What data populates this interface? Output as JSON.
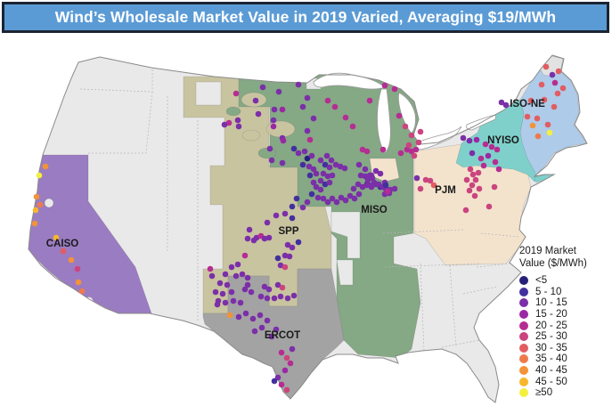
{
  "title_bar": {
    "text": "Wind’s Wholesale Market Value in 2019 Varied, Averaging $19/MWh",
    "bg_color": "#5b9bd5",
    "border_color": "#1b2433",
    "text_color": "#ffffff"
  },
  "chart_data": {
    "type": "scatter",
    "title": "Wind’s Wholesale Market Value in 2019 Varied, Averaging $19/MWh",
    "map_colors": {
      "non_iso_area": "#e9e9e9",
      "outline": "#8a8a8a",
      "lake": "#ffffff",
      "state_border": "#b5b5b5"
    },
    "legend": {
      "title_line1": "2019 Market",
      "title_line2": "Value ($/MWh)",
      "categories": [
        {
          "label": "<5",
          "color": "#262178"
        },
        {
          "label": "5 - 10",
          "color": "#42309f"
        },
        {
          "label": "10 - 15",
          "color": "#7b2fa8"
        },
        {
          "label": "15 - 20",
          "color": "#9a28a5"
        },
        {
          "label": "20 - 25",
          "color": "#b52d93"
        },
        {
          "label": "25 - 30",
          "color": "#cb447f"
        },
        {
          "label": "30 - 35",
          "color": "#e25d62"
        },
        {
          "label": "35 - 40",
          "color": "#ee7a4c"
        },
        {
          "label": "40 - 45",
          "color": "#f39239"
        },
        {
          "label": "45 - 50",
          "color": "#f8b62d"
        },
        {
          "label": "≥50",
          "color": "#f4ef3e"
        }
      ]
    },
    "regions": [
      {
        "id": "caiso",
        "label": "CAISO",
        "color": "#9a7cc2",
        "label_xy": [
          70,
          277
        ]
      },
      {
        "id": "spp",
        "label": "SPP",
        "color": "#c9c4a0",
        "label_xy": [
          324,
          263
        ]
      },
      {
        "id": "ercot",
        "label": "ERCOT",
        "color": "#a3a3a3",
        "label_xy": [
          317,
          380
        ]
      },
      {
        "id": "miso",
        "label": "MISO",
        "color": "#85a885",
        "label_xy": [
          420,
          239
        ]
      },
      {
        "id": "pjm",
        "label": "PJM",
        "color": "#f3e3cd",
        "label_xy": [
          500,
          217
        ]
      },
      {
        "id": "nyiso",
        "label": "NYISO",
        "color": "#7fd0cb",
        "label_xy": [
          565,
          161
        ]
      },
      {
        "id": "isone",
        "label": "ISO-NE",
        "color": "#aecbe9",
        "label_xy": [
          592,
          120
        ]
      }
    ],
    "points": [
      [
        51,
        187,
        8
      ],
      [
        44,
        197,
        10
      ],
      [
        41,
        221,
        8
      ],
      [
        45,
        230,
        7
      ],
      [
        40,
        236,
        9
      ],
      [
        39,
        251,
        8
      ],
      [
        63,
        267,
        9
      ],
      [
        71,
        282,
        6
      ],
      [
        80,
        292,
        8
      ],
      [
        87,
        302,
        5
      ],
      [
        88,
        317,
        8
      ],
      [
        92,
        327,
        7
      ],
      [
        265,
        105,
        4
      ],
      [
        295,
        98,
        2
      ],
      [
        313,
        103,
        2
      ],
      [
        287,
        113,
        2
      ],
      [
        308,
        123,
        2
      ],
      [
        317,
        123,
        3
      ],
      [
        267,
        135,
        2
      ],
      [
        257,
        138,
        4
      ],
      [
        252,
        140,
        2
      ],
      [
        268,
        142,
        2
      ],
      [
        307,
        135,
        2
      ],
      [
        307,
        142,
        3
      ],
      [
        317,
        155,
        2
      ],
      [
        290,
        128,
        2
      ],
      [
        303,
        167,
        2
      ],
      [
        318,
        158,
        3
      ],
      [
        305,
        180,
        2
      ],
      [
        317,
        183,
        2
      ],
      [
        335,
        95,
        2
      ],
      [
        345,
        110,
        2
      ],
      [
        345,
        147,
        2
      ],
      [
        352,
        133,
        2
      ],
      [
        340,
        120,
        2
      ],
      [
        415,
        113,
        4
      ],
      [
        376,
        120,
        4
      ],
      [
        388,
        132,
        4
      ],
      [
        368,
        113,
        4
      ],
      [
        396,
        142,
        4
      ],
      [
        348,
        157,
        4
      ],
      [
        330,
        167,
        1
      ],
      [
        335,
        172,
        2
      ],
      [
        342,
        170,
        2
      ],
      [
        345,
        178,
        0
      ],
      [
        350,
        175,
        2
      ],
      [
        340,
        185,
        1
      ],
      [
        347,
        187,
        2
      ],
      [
        352,
        190,
        2
      ],
      [
        355,
        195,
        2
      ],
      [
        348,
        197,
        1
      ],
      [
        360,
        180,
        2
      ],
      [
        367,
        175,
        2
      ],
      [
        372,
        180,
        2
      ],
      [
        365,
        185,
        1
      ],
      [
        370,
        188,
        2
      ],
      [
        377,
        185,
        2
      ],
      [
        382,
        187,
        2
      ],
      [
        387,
        189,
        2
      ],
      [
        363,
        195,
        2
      ],
      [
        368,
        198,
        2
      ],
      [
        373,
        197,
        2
      ],
      [
        360,
        203,
        2
      ],
      [
        365,
        207,
        1
      ],
      [
        370,
        205,
        2
      ],
      [
        352,
        205,
        2
      ],
      [
        355,
        210,
        2
      ],
      [
        360,
        213,
        2
      ],
      [
        350,
        218,
        1
      ],
      [
        357,
        222,
        2
      ],
      [
        345,
        227,
        2
      ],
      [
        333,
        223,
        1
      ],
      [
        328,
        232,
        1
      ],
      [
        340,
        233,
        2
      ],
      [
        363,
        223,
        2
      ],
      [
        368,
        227,
        2
      ],
      [
        373,
        223,
        2
      ],
      [
        378,
        227,
        2
      ],
      [
        383,
        222,
        2
      ],
      [
        388,
        225,
        2
      ],
      [
        393,
        220,
        2
      ],
      [
        398,
        223,
        2
      ],
      [
        403,
        218,
        2
      ],
      [
        397,
        212,
        2
      ],
      [
        402,
        207,
        2
      ],
      [
        407,
        210,
        2
      ],
      [
        412,
        207,
        0
      ],
      [
        417,
        210,
        2
      ],
      [
        422,
        207,
        2
      ],
      [
        427,
        210,
        1
      ],
      [
        432,
        205,
        2
      ],
      [
        417,
        197,
        2
      ],
      [
        422,
        192,
        2
      ],
      [
        427,
        195,
        2
      ],
      [
        410,
        190,
        2
      ],
      [
        403,
        185,
        2
      ],
      [
        407,
        168,
        4
      ],
      [
        412,
        170,
        4
      ],
      [
        430,
        168,
        4
      ],
      [
        405,
        197,
        2
      ],
      [
        410,
        198,
        2
      ],
      [
        415,
        197,
        2
      ],
      [
        413,
        202,
        2
      ],
      [
        418,
        200,
        2
      ],
      [
        420,
        205,
        2
      ],
      [
        425,
        207,
        2
      ],
      [
        417,
        208,
        2
      ],
      [
        412,
        208,
        2
      ],
      [
        430,
        210,
        2
      ],
      [
        433,
        212,
        2
      ],
      [
        438,
        213,
        2
      ],
      [
        443,
        212,
        2
      ],
      [
        437,
        217,
        2
      ],
      [
        432,
        218,
        2
      ],
      [
        433,
        208,
        1
      ],
      [
        435,
        215,
        4
      ],
      [
        457,
        168,
        4
      ],
      [
        462,
        170,
        4
      ],
      [
        467,
        168,
        4
      ],
      [
        448,
        130,
        4
      ],
      [
        455,
        142,
        5
      ],
      [
        462,
        152,
        5
      ],
      [
        470,
        160,
        5
      ],
      [
        459,
        163,
        5
      ],
      [
        465,
        175,
        5
      ],
      [
        450,
        172,
        4
      ],
      [
        472,
        148,
        5
      ],
      [
        432,
        96,
        4
      ],
      [
        443,
        100,
        4
      ],
      [
        468,
        200,
        2
      ],
      [
        478,
        202,
        5
      ],
      [
        483,
        203,
        5
      ],
      [
        487,
        208,
        6
      ],
      [
        472,
        212,
        5
      ],
      [
        528,
        190,
        5
      ],
      [
        531,
        196,
        5
      ],
      [
        534,
        202,
        5
      ],
      [
        530,
        208,
        5
      ],
      [
        527,
        214,
        5
      ],
      [
        533,
        220,
        5
      ],
      [
        537,
        194,
        5
      ],
      [
        524,
        202,
        5
      ],
      [
        538,
        212,
        5
      ],
      [
        523,
        236,
        5
      ],
      [
        555,
        210,
        5
      ],
      [
        549,
        232,
        5
      ],
      [
        520,
        155,
        2
      ],
      [
        527,
        158,
        2
      ],
      [
        535,
        157,
        3
      ],
      [
        545,
        162,
        4
      ],
      [
        552,
        165,
        4
      ],
      [
        558,
        168,
        4
      ],
      [
        548,
        175,
        3
      ],
      [
        530,
        172,
        2
      ],
      [
        563,
        115,
        2
      ],
      [
        568,
        118,
        2
      ],
      [
        540,
        178,
        4
      ],
      [
        556,
        182,
        4
      ],
      [
        560,
        190,
        4
      ],
      [
        543,
        186,
        4
      ],
      [
        613,
        75,
        6
      ],
      [
        627,
        80,
        6
      ],
      [
        620,
        84,
        2
      ],
      [
        623,
        93,
        4
      ],
      [
        608,
        95,
        6
      ],
      [
        632,
        99,
        6
      ],
      [
        596,
        113,
        6
      ],
      [
        611,
        112,
        6
      ],
      [
        626,
        105,
        6
      ],
      [
        592,
        131,
        6
      ],
      [
        603,
        133,
        6
      ],
      [
        615,
        140,
        6
      ],
      [
        598,
        141,
        8
      ],
      [
        604,
        153,
        7
      ],
      [
        617,
        149,
        10
      ],
      [
        622,
        120,
        6
      ],
      [
        310,
        242,
        2
      ],
      [
        320,
        240,
        2
      ],
      [
        328,
        245,
        1
      ],
      [
        300,
        250,
        2
      ],
      [
        280,
        258,
        2
      ],
      [
        288,
        267,
        2
      ],
      [
        293,
        265,
        4
      ],
      [
        297,
        268,
        2
      ],
      [
        302,
        267,
        2
      ],
      [
        285,
        270,
        2
      ],
      [
        278,
        268,
        2
      ],
      [
        323,
        275,
        2
      ],
      [
        328,
        278,
        2
      ],
      [
        335,
        272,
        1
      ],
      [
        320,
        287,
        2
      ],
      [
        325,
        288,
        2
      ],
      [
        312,
        290,
        1
      ],
      [
        315,
        298,
        2
      ],
      [
        320,
        300,
        5
      ],
      [
        275,
        287,
        4
      ],
      [
        267,
        297,
        2
      ],
      [
        260,
        300,
        2
      ],
      [
        253,
        308,
        2
      ],
      [
        265,
        310,
        2
      ],
      [
        272,
        308,
        2
      ],
      [
        278,
        312,
        2
      ],
      [
        247,
        318,
        2
      ],
      [
        255,
        320,
        2
      ],
      [
        242,
        328,
        2
      ],
      [
        250,
        330,
        2
      ],
      [
        260,
        328,
        2
      ],
      [
        278,
        320,
        2
      ],
      [
        275,
        325,
        2
      ],
      [
        282,
        328,
        2
      ],
      [
        297,
        322,
        2
      ],
      [
        302,
        325,
        2
      ],
      [
        312,
        320,
        2
      ],
      [
        317,
        323,
        5
      ],
      [
        293,
        333,
        2
      ],
      [
        300,
        335,
        2
      ],
      [
        308,
        335,
        2
      ],
      [
        315,
        333,
        2
      ],
      [
        323,
        335,
        2
      ],
      [
        330,
        332,
        2
      ],
      [
        245,
        338,
        2
      ],
      [
        253,
        340,
        2
      ],
      [
        262,
        338,
        2
      ],
      [
        270,
        340,
        2
      ],
      [
        238,
        310,
        2
      ],
      [
        236,
        302,
        4
      ],
      [
        244,
        342,
        2
      ],
      [
        258,
        354,
        8
      ],
      [
        268,
        356,
        2
      ],
      [
        276,
        352,
        2
      ],
      [
        284,
        358,
        2
      ],
      [
        292,
        354,
        2
      ],
      [
        300,
        360,
        2
      ],
      [
        310,
        370,
        2
      ],
      [
        286,
        372,
        2
      ],
      [
        294,
        368,
        2
      ],
      [
        305,
        378,
        2
      ],
      [
        316,
        396,
        4
      ],
      [
        322,
        402,
        5
      ],
      [
        326,
        408,
        4
      ],
      [
        320,
        416,
        3
      ],
      [
        312,
        424,
        2
      ],
      [
        316,
        432,
        4
      ],
      [
        322,
        438,
        5
      ],
      [
        308,
        428,
        1
      ],
      [
        328,
        392,
        2
      ]
    ]
  }
}
